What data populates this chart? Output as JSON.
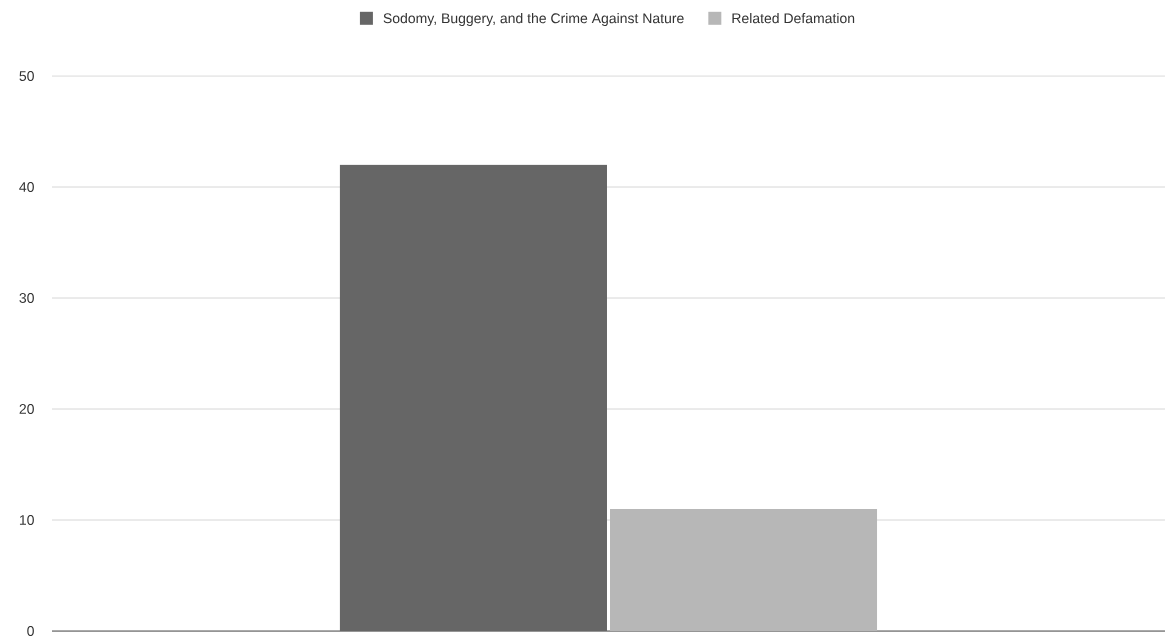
{
  "chart_data": {
    "type": "bar",
    "categories": [
      null
    ],
    "series": [
      {
        "name": "Sodomy, Buggery, and the Crime Against Nature",
        "color": "#666666",
        "values": [
          42
        ]
      },
      {
        "name": "Related Defamation",
        "color": "#b7b7b7",
        "values": [
          11
        ]
      }
    ],
    "ylim": [
      0,
      50
    ],
    "yticks": [
      0,
      10,
      20,
      30,
      40,
      50
    ],
    "grid": "y",
    "legend": "top"
  }
}
